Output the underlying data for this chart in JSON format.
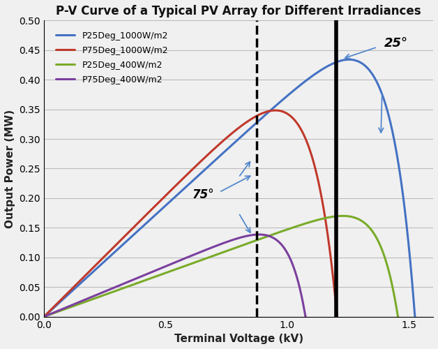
{
  "title": "P-V Curve of a Typical PV Array for Different Irradiances",
  "xlabel": "Terminal Voltage (kV)",
  "ylabel": "Output Power (MW)",
  "xlim": [
    0,
    1.6
  ],
  "ylim": [
    0,
    0.5
  ],
  "xticks": [
    0,
    0.5,
    1.0,
    1.5
  ],
  "yticks": [
    0,
    0.05,
    0.1,
    0.15,
    0.2,
    0.25,
    0.3,
    0.35,
    0.4,
    0.45,
    0.5
  ],
  "curves": [
    {
      "key": "P25_1000",
      "color": "#4472C4",
      "label": "P25Deg_1000W/m2",
      "Voc": 1.525,
      "Vmp": 1.22,
      "Pmp": 0.432,
      "lw": 2.2
    },
    {
      "key": "P75_1000",
      "color": "#C0392B",
      "label": "P75Deg_1000W/m2",
      "Voc": 1.205,
      "Vmp": 0.88,
      "Pmp": 0.34,
      "lw": 2.2
    },
    {
      "key": "P25_400",
      "color": "#7AAB2A",
      "label": "P25Deg_400W/m2",
      "Voc": 1.455,
      "Vmp": 1.22,
      "Pmp": 0.17,
      "lw": 2.2
    },
    {
      "key": "P75_400",
      "color": "#7B3F9E",
      "label": "P75Deg_400W/m2",
      "Voc": 1.075,
      "Vmp": 0.86,
      "Pmp": 0.138,
      "lw": 2.2
    }
  ],
  "dashed_line_x": 0.875,
  "solid_line_x": 1.2,
  "background_color": "#f0f0f0",
  "plot_bg_color": "#f0f0f0",
  "grid_color": "#bbbbbb",
  "arrow_color": "#5588CC"
}
